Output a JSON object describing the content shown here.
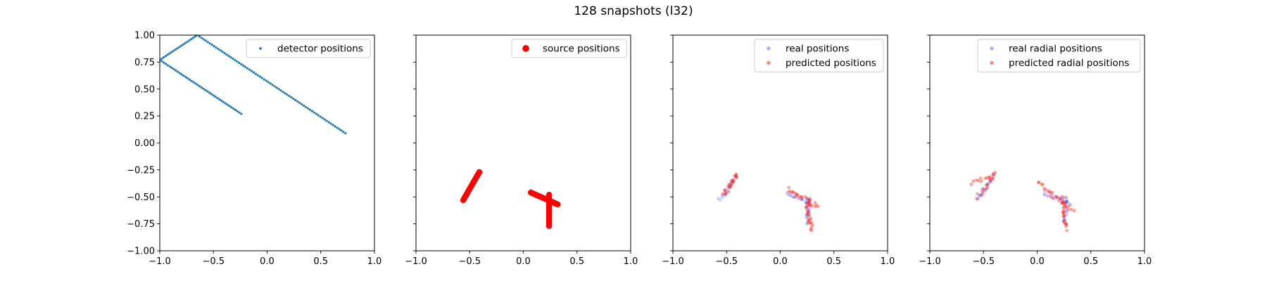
{
  "figure": {
    "title": "128 snapshots (l32)"
  },
  "chart_data": [
    {
      "type": "scatter",
      "xlim": [
        -1.0,
        1.0
      ],
      "ylim": [
        -1.0,
        1.0
      ],
      "xticks": [
        "−1.0",
        "−0.5",
        "0.0",
        "0.5",
        "1.0"
      ],
      "yticks": [
        "−1.00",
        "−0.75",
        "−0.50",
        "−0.25",
        "0.00",
        "0.25",
        "0.50",
        "0.75",
        "1.00"
      ],
      "show_ytick_labels": true,
      "legend_position": "top-right",
      "series": [
        {
          "name": "detector positions",
          "color": "#1f77b4",
          "alpha": 1.0,
          "marker_size": 1.6,
          "segments": [
            {
              "from": [
                -1.0,
                0.77
              ],
              "to": [
                -0.65,
                1.0
              ],
              "n": 20
            },
            {
              "from": [
                -0.65,
                1.0
              ],
              "to": [
                0.73,
                0.09
              ],
              "n": 72
            },
            {
              "from": [
                -1.0,
                0.77
              ],
              "to": [
                -0.24,
                0.27
              ],
              "n": 42
            }
          ]
        }
      ]
    },
    {
      "type": "scatter",
      "xlim": [
        -1.0,
        1.0
      ],
      "ylim": [
        -1.0,
        1.0
      ],
      "xticks": [
        "−1.0",
        "−0.5",
        "0.0",
        "0.5",
        "1.0"
      ],
      "yticks": [
        "−1.00",
        "−0.75",
        "−0.50",
        "−0.25",
        "0.00",
        "0.25",
        "0.50",
        "0.75",
        "1.00"
      ],
      "show_ytick_labels": false,
      "legend_position": "top-right",
      "series": [
        {
          "name": "source positions",
          "color": "#ff0000",
          "alpha": 1.0,
          "marker_size": 4.2,
          "segments": [
            {
              "from": [
                -0.56,
                -0.53
              ],
              "to": [
                -0.41,
                -0.27
              ],
              "n": 32
            },
            {
              "from": [
                0.07,
                -0.46
              ],
              "to": [
                0.32,
                -0.57
              ],
              "n": 32
            },
            {
              "from": [
                0.24,
                -0.48
              ],
              "to": [
                0.24,
                -0.77
              ],
              "n": 32
            }
          ]
        }
      ]
    },
    {
      "type": "scatter",
      "xlim": [
        -1.0,
        1.0
      ],
      "ylim": [
        -1.0,
        1.0
      ],
      "xticks": [
        "−1.0",
        "−0.5",
        "0.0",
        "0.5",
        "1.0"
      ],
      "yticks": [
        "−1.00",
        "−0.75",
        "−0.50",
        "−0.25",
        "0.00",
        "0.25",
        "0.50",
        "0.75",
        "1.00"
      ],
      "show_ytick_labels": false,
      "legend_position": "top-right",
      "series": [
        {
          "name": "real positions",
          "color": "#0000ff",
          "alpha": 0.18,
          "marker_size": 2.3,
          "segments": [
            {
              "from": [
                -0.56,
                -0.53
              ],
              "to": [
                -0.41,
                -0.3
              ],
              "n": 22
            },
            {
              "from": [
                0.06,
                -0.46
              ],
              "to": [
                0.3,
                -0.58
              ],
              "n": 22
            },
            {
              "from": [
                0.26,
                -0.5
              ],
              "to": [
                0.26,
                -0.75
              ],
              "n": 22
            }
          ]
        },
        {
          "name": "predicted positions",
          "color": "#ff2d1a",
          "alpha": 0.45,
          "marker_size": 2.3,
          "segments": [
            {
              "from": [
                -0.52,
                -0.48
              ],
              "to": [
                -0.41,
                -0.29
              ],
              "n": 22
            },
            {
              "from": [
                0.07,
                -0.43
              ],
              "to": [
                0.36,
                -0.59
              ],
              "n": 24
            },
            {
              "from": [
                0.25,
                -0.55
              ],
              "to": [
                0.29,
                -0.81
              ],
              "n": 22
            }
          ]
        }
      ]
    },
    {
      "type": "scatter",
      "xlim": [
        -1.0,
        1.0
      ],
      "ylim": [
        -1.0,
        1.0
      ],
      "xticks": [
        "−1.0",
        "−0.5",
        "0.0",
        "0.5",
        "1.0"
      ],
      "yticks": [
        "−1.00",
        "−0.75",
        "−0.50",
        "−0.25",
        "0.00",
        "0.25",
        "0.50",
        "0.75",
        "1.00"
      ],
      "show_ytick_labels": false,
      "legend_position": "top-right",
      "series": [
        {
          "name": "real radial positions",
          "color": "#0000ff",
          "alpha": 0.18,
          "marker_size": 2.3,
          "segments": [
            {
              "from": [
                -0.56,
                -0.53
              ],
              "to": [
                -0.41,
                -0.3
              ],
              "n": 22
            },
            {
              "from": [
                0.06,
                -0.46
              ],
              "to": [
                0.3,
                -0.56
              ],
              "n": 22
            },
            {
              "from": [
                0.26,
                -0.5
              ],
              "to": [
                0.26,
                -0.75
              ],
              "n": 22
            }
          ]
        },
        {
          "name": "predicted radial positions",
          "color": "#ff2d1a",
          "alpha": 0.45,
          "marker_size": 2.3,
          "segments": [
            {
              "from": [
                -0.62,
                -0.38
              ],
              "to": [
                -0.38,
                -0.28
              ],
              "n": 12
            },
            {
              "from": [
                -0.55,
                -0.5
              ],
              "to": [
                -0.4,
                -0.3
              ],
              "n": 14
            },
            {
              "from": [
                0.0,
                -0.37
              ],
              "to": [
                0.33,
                -0.63
              ],
              "n": 24
            },
            {
              "from": [
                0.24,
                -0.5
              ],
              "to": [
                0.27,
                -0.8
              ],
              "n": 20
            }
          ]
        }
      ]
    }
  ]
}
